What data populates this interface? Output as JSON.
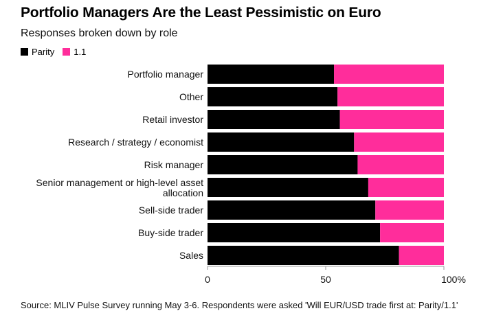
{
  "chart_data": {
    "type": "bar",
    "orientation": "horizontal",
    "stacked": true,
    "title": "Portfolio Managers Are the Least Pessimistic on Euro",
    "subtitle": "Responses broken down by role",
    "categories": [
      "Portfolio manager",
      "Other",
      "Retail investor",
      "Research / strategy / economist",
      "Risk manager",
      "Senior management or high-level asset allocation",
      "Sell-side trader",
      "Buy-side trader",
      "Sales"
    ],
    "series": [
      {
        "name": "Parity",
        "color": "#000000",
        "values": [
          53.5,
          55,
          56,
          62,
          63.5,
          68,
          71,
          73,
          81
        ]
      },
      {
        "name": "1.1",
        "color": "#ff2d9b",
        "values": [
          46.5,
          45,
          44,
          38,
          36.5,
          32,
          29,
          27,
          19
        ]
      }
    ],
    "xlim": [
      0,
      100
    ],
    "xticks": [
      "0",
      "50",
      "100%"
    ],
    "xtick_values": [
      0,
      50,
      100
    ],
    "legend_position": "top-left",
    "grid": false
  },
  "source": "Source: MLIV Pulse Survey running May 3-6. Respondents were asked 'Will EUR/USD trade first at: Parity/1.1'"
}
